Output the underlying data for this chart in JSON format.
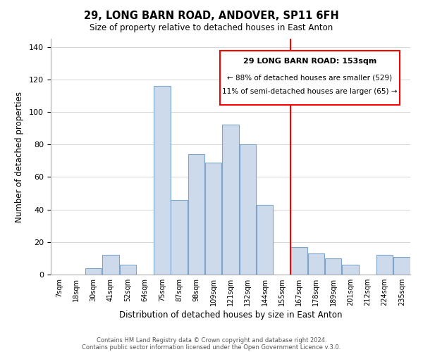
{
  "title": "29, LONG BARN ROAD, ANDOVER, SP11 6FH",
  "subtitle": "Size of property relative to detached houses in East Anton",
  "xlabel": "Distribution of detached houses by size in East Anton",
  "ylabel": "Number of detached properties",
  "bin_labels": [
    "7sqm",
    "18sqm",
    "30sqm",
    "41sqm",
    "52sqm",
    "64sqm",
    "75sqm",
    "87sqm",
    "98sqm",
    "109sqm",
    "121sqm",
    "132sqm",
    "144sqm",
    "155sqm",
    "167sqm",
    "178sqm",
    "189sqm",
    "201sqm",
    "212sqm",
    "224sqm",
    "235sqm"
  ],
  "bar_values": [
    0,
    0,
    4,
    12,
    6,
    0,
    116,
    46,
    74,
    69,
    92,
    80,
    43,
    0,
    17,
    13,
    10,
    6,
    0,
    12,
    11
  ],
  "bar_color": "#cddaeb",
  "bar_edge_color": "#7ca4c8",
  "vline_x": 13.5,
  "vline_color": "red",
  "ylim": [
    0,
    145
  ],
  "yticks": [
    0,
    20,
    40,
    60,
    80,
    100,
    120,
    140
  ],
  "annotation_title": "29 LONG BARN ROAD: 153sqm",
  "annotation_line1": "← 88% of detached houses are smaller (529)",
  "annotation_line2": "11% of semi-detached houses are larger (65) →",
  "footer1": "Contains HM Land Registry data © Crown copyright and database right 2024.",
  "footer2": "Contains public sector information licensed under the Open Government Licence v.3.0."
}
